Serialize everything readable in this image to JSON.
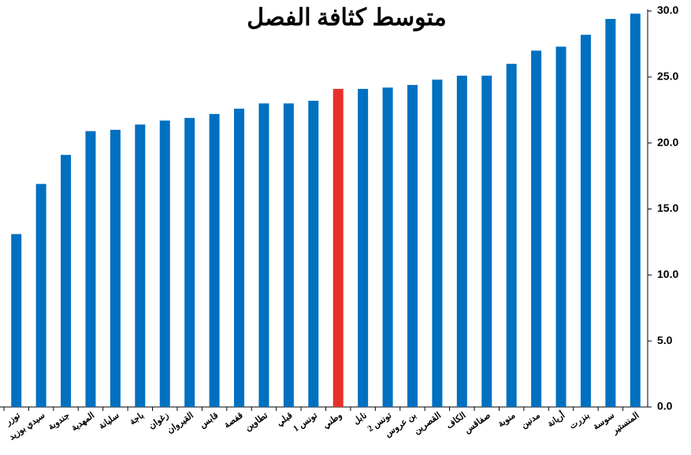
{
  "chart_data": {
    "type": "bar",
    "title": "متوسط كثافة الفصل",
    "categories": [
      "توزر",
      "سيدي بوزيد",
      "جندوبة",
      "المهدية",
      "سليانة",
      "باجة",
      "زغوان",
      "القيروان",
      "قابس",
      "قفصة",
      "تطاوين",
      "قبلي",
      "تونس 1",
      "وطني",
      "نابل",
      "تونس 2",
      "بن عروس",
      "القصرين",
      "الكاف",
      "صفاقس",
      "منوبة",
      "مدنين",
      "أريانة",
      "بنزرت",
      "سوسة",
      "المنستير"
    ],
    "values": [
      13.1,
      16.9,
      19.1,
      20.9,
      21.0,
      21.4,
      21.7,
      21.9,
      22.2,
      22.6,
      23.0,
      23.0,
      23.2,
      24.1,
      24.1,
      24.2,
      24.4,
      24.8,
      25.1,
      25.1,
      26.0,
      27.0,
      27.3,
      28.2,
      29.4,
      29.8
    ],
    "colors": [
      "#0070c0",
      "#0070c0",
      "#0070c0",
      "#0070c0",
      "#0070c0",
      "#0070c0",
      "#0070c0",
      "#0070c0",
      "#0070c0",
      "#0070c0",
      "#0070c0",
      "#0070c0",
      "#0070c0",
      "#e8302a",
      "#0070c0",
      "#0070c0",
      "#0070c0",
      "#0070c0",
      "#0070c0",
      "#0070c0",
      "#0070c0",
      "#0070c0",
      "#0070c0",
      "#0070c0",
      "#0070c0",
      "#0070c0"
    ],
    "ylim": [
      0,
      30
    ],
    "yticks": [
      {
        "value": 0,
        "label": "0.0"
      },
      {
        "value": 5,
        "label": "5.0"
      },
      {
        "value": 10,
        "label": "10.0"
      },
      {
        "value": 15,
        "label": "15.0"
      },
      {
        "value": 20,
        "label": "20.0"
      },
      {
        "value": 25,
        "label": "25.0"
      },
      {
        "value": 30,
        "label": "30.0"
      }
    ],
    "grid": false,
    "y_axis_side": "right"
  }
}
